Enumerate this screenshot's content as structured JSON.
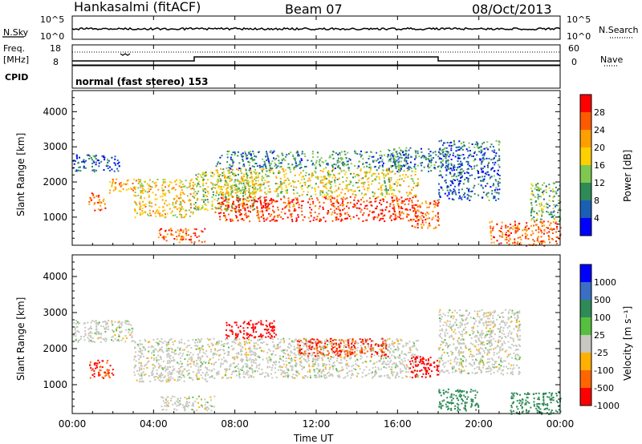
{
  "header": {
    "station": "Hankasalmi (fitACF)",
    "beam": "Beam 07",
    "date": "08/Oct/2013"
  },
  "noise_panel": {
    "left_label": "N.Sky",
    "left_ticks": [
      "10^5",
      "10^0"
    ],
    "right_label": "N.Search",
    "right_ticks": [
      "10^5",
      "10^0"
    ]
  },
  "freq_panel": {
    "left_label_1": "Freq.",
    "left_label_2": "[MHz]",
    "left_ticks": [
      "18",
      "8"
    ],
    "right_label": "Nave",
    "right_ticks": [
      "60",
      "0"
    ]
  },
  "cpid_panel": {
    "label": "CPID",
    "text": "normal (fast stereo) 153"
  },
  "power_panel": {
    "ylabel": "Slant Range [km]",
    "yticks": [
      "4000",
      "3000",
      "2000",
      "1000"
    ],
    "colorbar_label": "Power [dB]",
    "colorbar_ticks": [
      "28",
      "24",
      "20",
      "16",
      "12",
      "8",
      "4"
    ],
    "colors": [
      "#ff0000",
      "#ff5a00",
      "#ffa000",
      "#ffd000",
      "#7ec850",
      "#2e8b57",
      "#1a5fb4",
      "#0000ff"
    ]
  },
  "velocity_panel": {
    "ylabel": "Slant Range [km]",
    "yticks": [
      "4000",
      "3000",
      "2000",
      "1000"
    ],
    "colorbar_label": "Velocity [m s⁻¹]",
    "colorbar_ticks": [
      "1000",
      "500",
      "100",
      "25",
      "-25",
      "-100",
      "-500",
      "-1000"
    ],
    "colors": [
      "#0000ff",
      "#3a6fc4",
      "#2e8b57",
      "#55c040",
      "#c8c8c0",
      "#ffb000",
      "#ff6600",
      "#ff0000"
    ]
  },
  "xaxis": {
    "label": "Time UT",
    "ticks": [
      "00:00",
      "04:00",
      "08:00",
      "12:00",
      "16:00",
      "20:00",
      "00:00"
    ]
  },
  "chart_data": {
    "type": "heatmap",
    "title": "Hankasalmi (fitACF)",
    "xlabel": "Time UT",
    "ylabel": "Slant Range [km]",
    "xlim_hours": [
      0,
      24
    ],
    "ylim_km": [
      200,
      4600
    ],
    "power_colorbar_db": [
      4,
      8,
      12,
      16,
      20,
      24,
      28
    ],
    "velocity_colorbar_ms": [
      -1000,
      -500,
      -100,
      -25,
      25,
      100,
      500,
      1000
    ],
    "freq_mhz": [
      {
        "start_h": 0.0,
        "end_h": 6.0,
        "value": 10
      },
      {
        "start_h": 6.0,
        "end_h": 18.0,
        "value": 12
      },
      {
        "start_h": 18.0,
        "end_h": 24.0,
        "value": 10
      }
    ],
    "power_regions": [
      {
        "t0": 0.0,
        "t1": 2.3,
        "r0": 2300,
        "r1": 2800,
        "power_db": 8
      },
      {
        "t0": 0.8,
        "t1": 1.6,
        "r0": 1200,
        "r1": 1700,
        "power_db": 24
      },
      {
        "t0": 1.8,
        "t1": 3.0,
        "r0": 1700,
        "r1": 2100,
        "power_db": 20
      },
      {
        "t0": 3.0,
        "t1": 6.0,
        "r0": 1000,
        "r1": 2100,
        "power_db": 18
      },
      {
        "t0": 4.2,
        "t1": 6.5,
        "r0": 300,
        "r1": 700,
        "power_db": 24
      },
      {
        "t0": 6.0,
        "t1": 9.0,
        "r0": 1200,
        "r1": 2300,
        "power_db": 14
      },
      {
        "t0": 7.0,
        "t1": 17.0,
        "r0": 1600,
        "r1": 2400,
        "power_db": 16
      },
      {
        "t0": 7.0,
        "t1": 17.0,
        "r0": 900,
        "r1": 1600,
        "power_db": 26
      },
      {
        "t0": 7.0,
        "t1": 16.5,
        "r0": 2400,
        "r1": 2900,
        "power_db": 10
      },
      {
        "t0": 15.5,
        "t1": 18.5,
        "r0": 2300,
        "r1": 3000,
        "power_db": 10
      },
      {
        "t0": 16.5,
        "t1": 18.0,
        "r0": 700,
        "r1": 1500,
        "power_db": 24
      },
      {
        "t0": 18.0,
        "t1": 21.0,
        "r0": 1500,
        "r1": 3200,
        "power_db": 8
      },
      {
        "t0": 20.5,
        "t1": 24.0,
        "r0": 200,
        "r1": 900,
        "power_db": 24
      },
      {
        "t0": 22.5,
        "t1": 24.0,
        "r0": 900,
        "r1": 2000,
        "power_db": 12
      }
    ],
    "velocity_regions": [
      {
        "t0": 0.0,
        "t1": 3.0,
        "r0": 2200,
        "r1": 2800,
        "velocity_ms": 0
      },
      {
        "t0": 0.8,
        "t1": 2.0,
        "r0": 1200,
        "r1": 1700,
        "velocity_ms": -300
      },
      {
        "t0": 3.0,
        "t1": 7.0,
        "r0": 1100,
        "r1": 2300,
        "velocity_ms": 0
      },
      {
        "t0": 4.3,
        "t1": 7.0,
        "r0": 300,
        "r1": 700,
        "velocity_ms": 0
      },
      {
        "t0": 7.0,
        "t1": 17.0,
        "r0": 1200,
        "r1": 2300,
        "velocity_ms": 0
      },
      {
        "t0": 7.5,
        "t1": 10.0,
        "r0": 2300,
        "r1": 2800,
        "velocity_ms": -400
      },
      {
        "t0": 11.0,
        "t1": 15.5,
        "r0": 1800,
        "r1": 2300,
        "velocity_ms": -300
      },
      {
        "t0": 16.5,
        "t1": 18.0,
        "r0": 1200,
        "r1": 1800,
        "velocity_ms": -400
      },
      {
        "t0": 18.0,
        "t1": 22.0,
        "r0": 1300,
        "r1": 3100,
        "velocity_ms": 0
      },
      {
        "t0": 18.0,
        "t1": 20.0,
        "r0": 300,
        "r1": 900,
        "velocity_ms": 150
      },
      {
        "t0": 21.5,
        "t1": 24.0,
        "r0": 200,
        "r1": 800,
        "velocity_ms": 150
      }
    ]
  }
}
